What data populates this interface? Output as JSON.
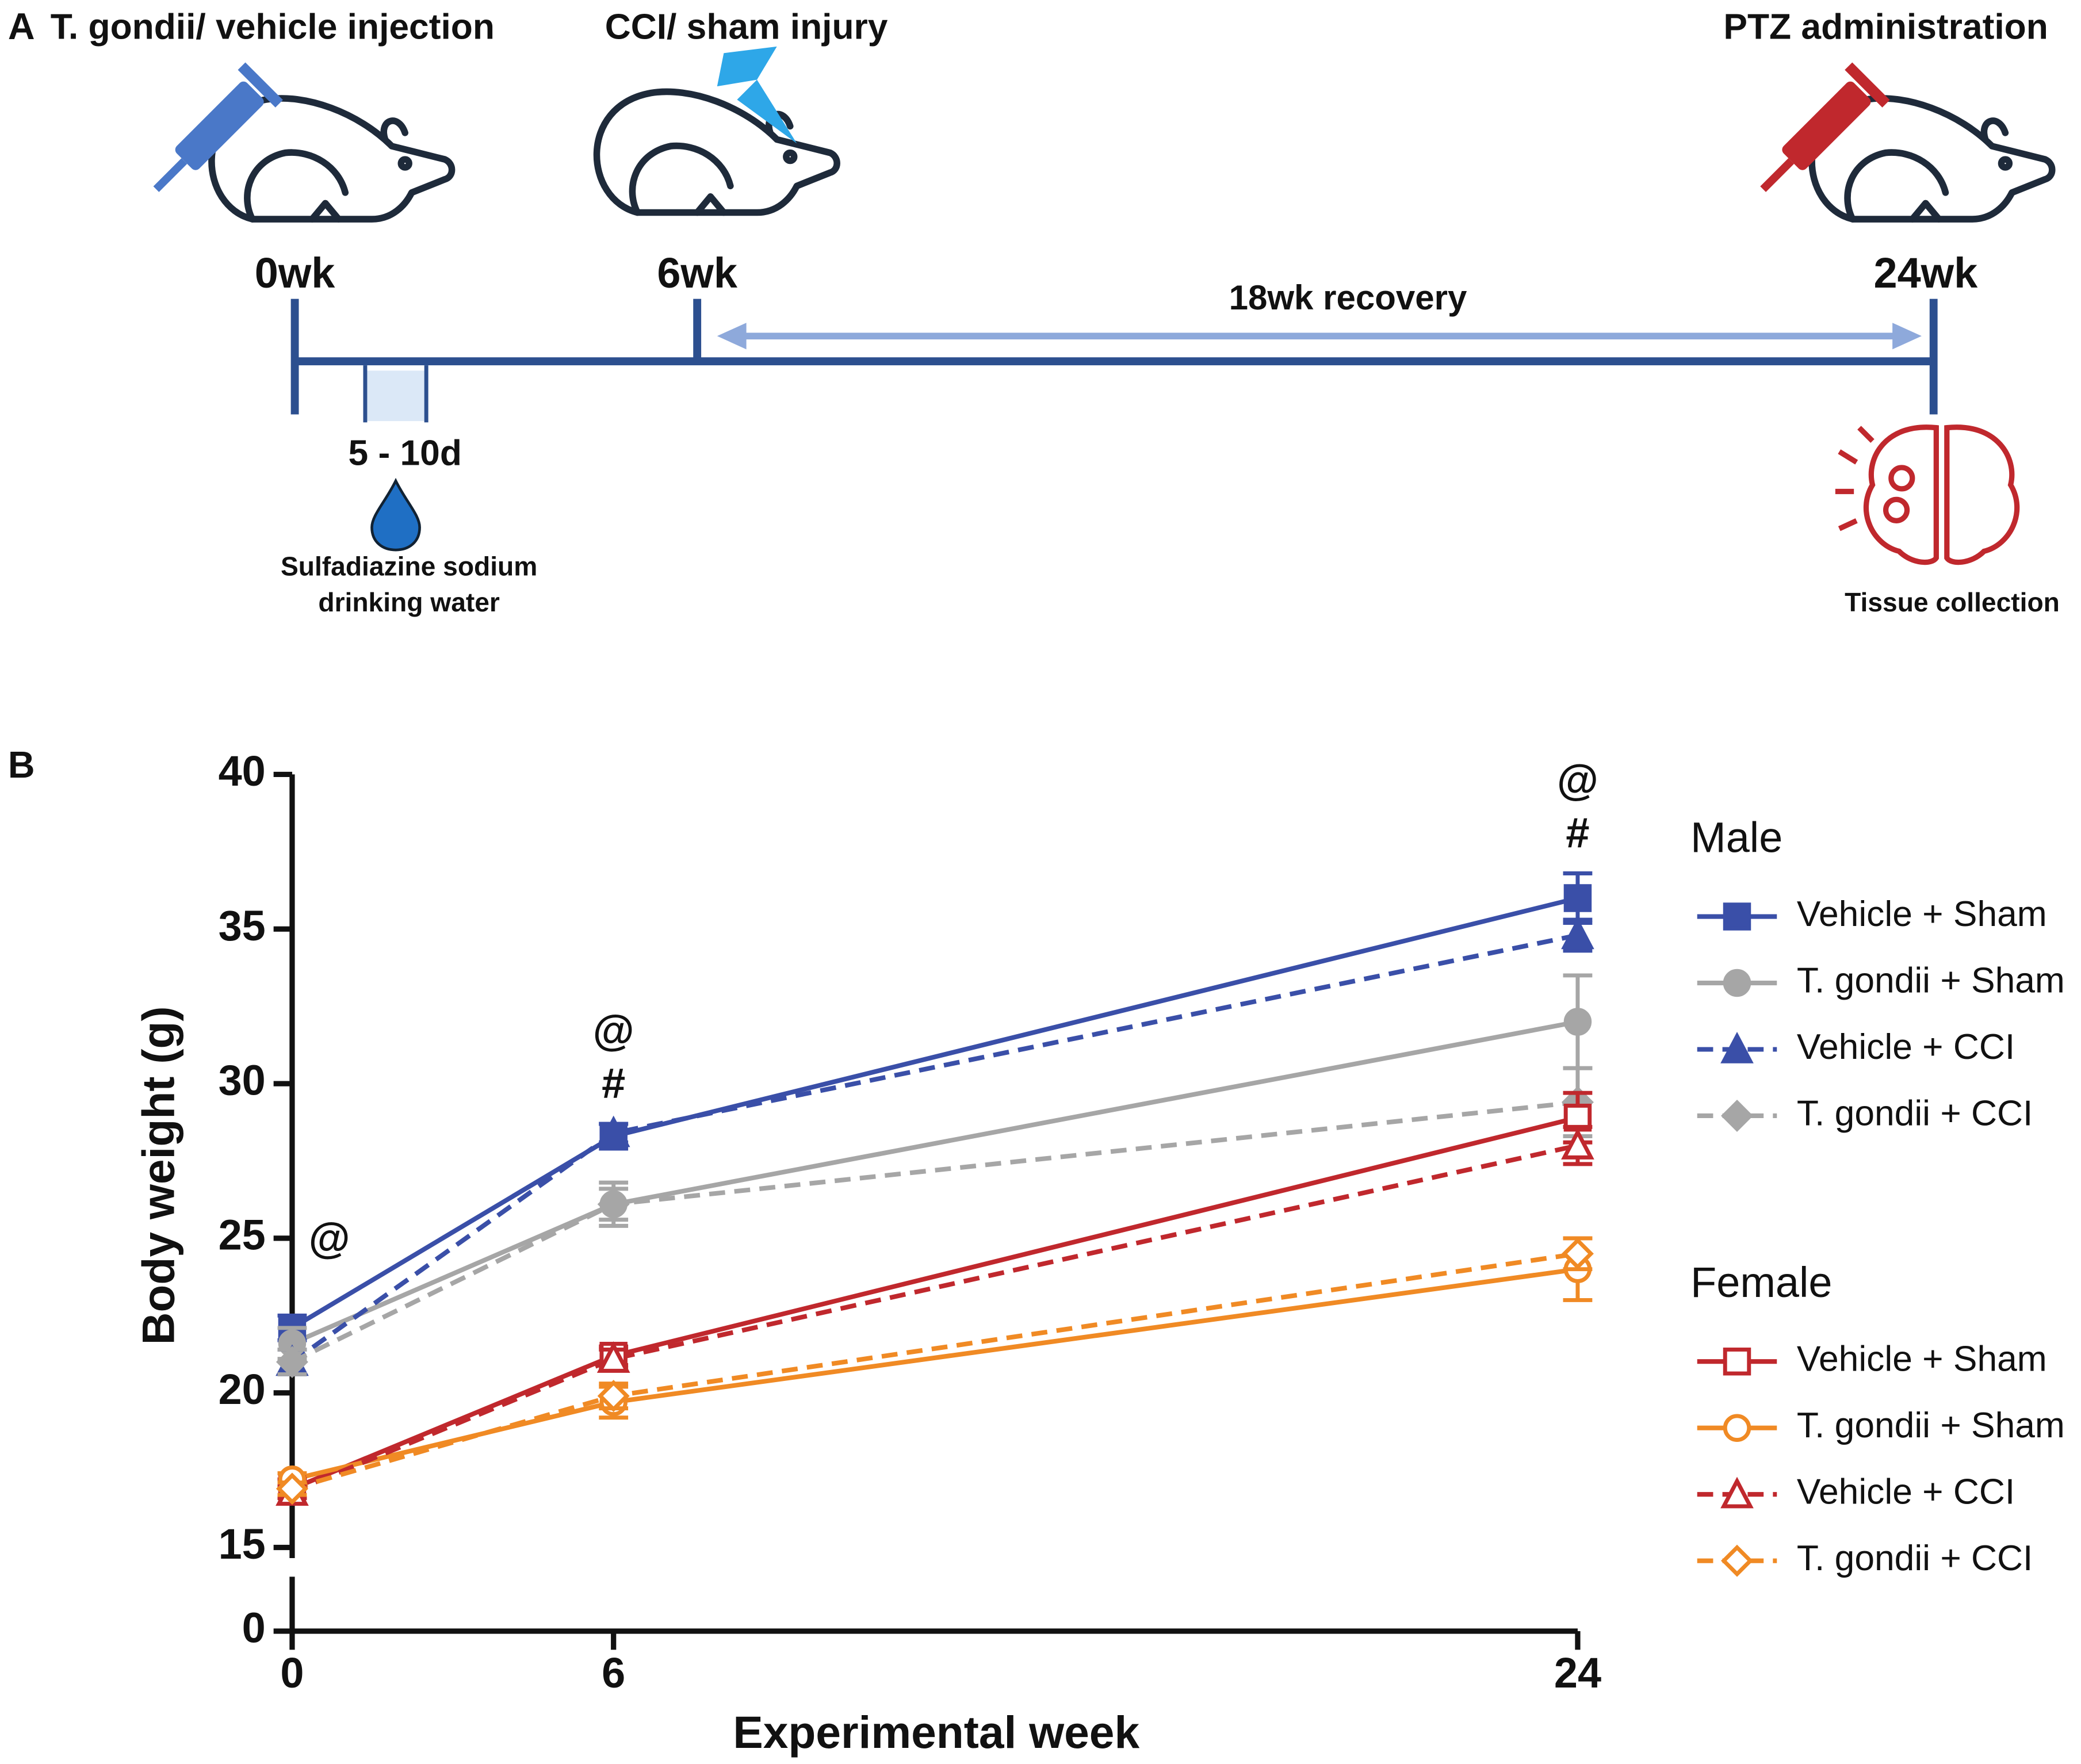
{
  "panel_a": {
    "label": "A",
    "injection": "T. gondii/ vehicle injection",
    "injury": "CCI/ sham injury",
    "ptz": "PTZ administration",
    "week0": "0wk",
    "week6": "6wk",
    "week24": "24wk",
    "recovery": "18wk recovery",
    "days": "5 - 10d",
    "water_line1": "Sulfadiazine sodium",
    "water_line2": "drinking water",
    "tissue": "Tissue collection"
  },
  "chart_data": {
    "type": "line",
    "panel_label": "B",
    "x_label": "Experimental week",
    "y_label": "Body weight (g)",
    "x": [
      0,
      6,
      24
    ],
    "xlim": [
      0,
      24
    ],
    "xticks": [
      0,
      6,
      24
    ],
    "ylim": [
      15,
      40
    ],
    "yticks": [
      0,
      15,
      20,
      25,
      30,
      35,
      40
    ],
    "axis_break": true,
    "legend_groups": [
      "Male",
      "Female"
    ],
    "series": [
      {
        "name": "Vehicle + Sham",
        "group": 0,
        "color": "#3a4fa8",
        "marker": "square",
        "filled": true,
        "dashed": false,
        "values": [
          22.1,
          28.3,
          36.0
        ],
        "errors": [
          0.4,
          0.4,
          0.8
        ]
      },
      {
        "name": "T. gondii + Sham",
        "group": 0,
        "color": "#a6a6a6",
        "marker": "circle",
        "filled": true,
        "dashed": false,
        "values": [
          21.6,
          26.1,
          32.0
        ],
        "errors": [
          0.5,
          0.7,
          1.5
        ]
      },
      {
        "name": "Vehicle + CCI",
        "group": 0,
        "color": "#3a4fa8",
        "marker": "triangle",
        "filled": true,
        "dashed": true,
        "values": [
          21.0,
          28.4,
          34.8
        ],
        "errors": [
          0.4,
          0.3,
          0.5
        ]
      },
      {
        "name": "T. gondii + CCI",
        "group": 0,
        "color": "#a6a6a6",
        "marker": "diamond",
        "filled": true,
        "dashed": true,
        "values": [
          21.0,
          26.1,
          29.4
        ],
        "errors": [
          0.4,
          0.5,
          1.1
        ]
      },
      {
        "name": "Vehicle + Sham",
        "group": 1,
        "color": "#c0282d",
        "marker": "square",
        "filled": false,
        "dashed": false,
        "values": [
          16.9,
          21.2,
          28.9
        ],
        "errors": [
          0.3,
          0.3,
          0.8
        ]
      },
      {
        "name": "T. gondii + Sham",
        "group": 1,
        "color": "#f08a24",
        "marker": "circle",
        "filled": false,
        "dashed": false,
        "values": [
          17.2,
          19.7,
          24.0
        ],
        "errors": [
          0.2,
          0.5,
          1.0
        ]
      },
      {
        "name": "Vehicle + CCI",
        "group": 1,
        "color": "#c0282d",
        "marker": "triangle",
        "filled": false,
        "dashed": true,
        "values": [
          16.8,
          21.1,
          28.0
        ],
        "errors": [
          0.2,
          0.3,
          0.6
        ]
      },
      {
        "name": "T. gondii + CCI",
        "group": 1,
        "color": "#f08a24",
        "marker": "diamond",
        "filled": false,
        "dashed": true,
        "values": [
          16.9,
          19.9,
          24.5
        ],
        "errors": [
          0.2,
          0.4,
          0.5
        ]
      }
    ],
    "annotations": [
      {
        "x": 0,
        "labels": [
          "@"
        ]
      },
      {
        "x": 6,
        "labels": [
          "#",
          "@"
        ]
      },
      {
        "x": 24,
        "labels": [
          "#",
          "@"
        ]
      }
    ]
  }
}
